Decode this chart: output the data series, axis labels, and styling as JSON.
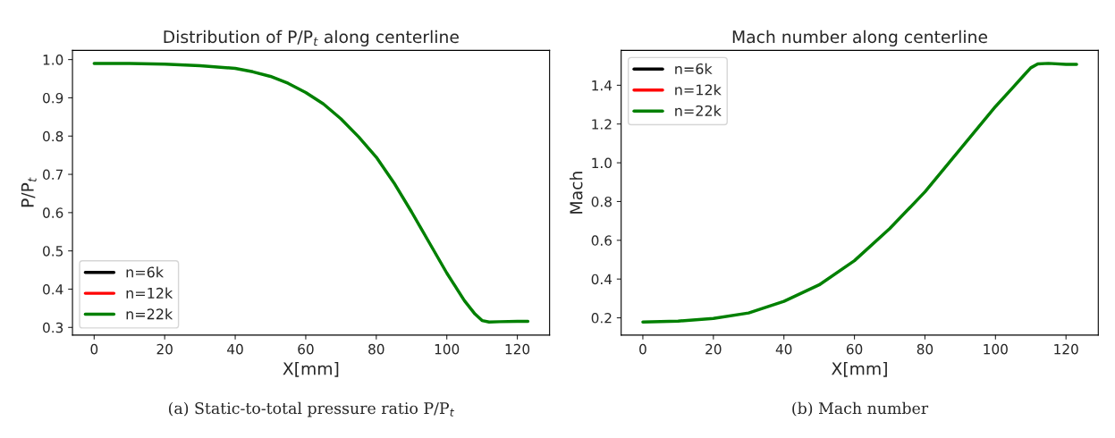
{
  "chart_data": [
    {
      "type": "line",
      "title": "Distribution of P/P$_{t}$ along centerline",
      "xlabel": "X[mm]",
      "ylabel": "P/P$_{t}$",
      "annotations": [
        "(a) Static-to-total pressure ratio P/P$_{t}$"
      ],
      "x": [
        0,
        10,
        20,
        30,
        40,
        45,
        50,
        55,
        60,
        65,
        70,
        75,
        80,
        85,
        90,
        95,
        100,
        105,
        108,
        110,
        112,
        115,
        120,
        123
      ],
      "series": [
        {
          "name": "n=6k",
          "color": "#000000",
          "values": [
            null,
            null,
            null,
            null,
            null,
            null,
            null,
            null,
            null,
            null,
            null,
            null,
            null,
            null,
            null,
            null,
            null,
            null,
            null,
            null,
            null,
            null,
            null,
            null
          ]
        },
        {
          "name": "n=12k",
          "color": "#ff0000",
          "values": [
            null,
            null,
            null,
            null,
            null,
            null,
            null,
            null,
            null,
            null,
            null,
            null,
            null,
            null,
            null,
            null,
            null,
            null,
            null,
            null,
            null,
            null,
            null,
            null
          ]
        },
        {
          "name": "n=22k",
          "color": "#008000",
          "values": [
            0.99,
            0.99,
            0.988,
            0.984,
            0.977,
            0.968,
            0.956,
            0.938,
            0.914,
            0.884,
            0.845,
            0.798,
            0.745,
            0.678,
            0.602,
            0.522,
            0.442,
            0.37,
            0.335,
            0.318,
            0.314,
            0.315,
            0.316,
            0.316
          ]
        }
      ],
      "xlim": [
        -6.15,
        129.15
      ],
      "ylim": [
        0.28,
        1.024
      ],
      "xticks": [
        0,
        20,
        40,
        60,
        80,
        100,
        120
      ],
      "yticks": [
        0.3,
        0.4,
        0.5,
        0.6,
        0.7,
        0.8,
        0.9,
        {
          "value": 1,
          "label": "1.0"
        }
      ],
      "legend": "bottom left",
      "grid": false
    },
    {
      "type": "line",
      "title": "Mach number along centerline",
      "xlabel": "X[mm]",
      "ylabel": "Mach",
      "annotations": [
        "(b) Mach number"
      ],
      "x": [
        0,
        10,
        20,
        30,
        40,
        50,
        60,
        70,
        80,
        90,
        100,
        105,
        108,
        110,
        112,
        115,
        120,
        123
      ],
      "series": [
        {
          "name": "n=6k",
          "color": "#000000",
          "values": [
            null,
            null,
            null,
            null,
            null,
            null,
            null,
            null,
            null,
            null,
            null,
            null,
            null,
            null,
            null,
            null,
            null,
            null
          ]
        },
        {
          "name": "n=12k",
          "color": "#ff0000",
          "values": [
            null,
            null,
            null,
            null,
            null,
            null,
            null,
            null,
            null,
            null,
            null,
            null,
            null,
            null,
            null,
            null,
            null,
            null
          ]
        },
        {
          "name": "n=22k",
          "color": "#008000",
          "values": [
            0.178,
            0.183,
            0.197,
            0.225,
            0.285,
            0.37,
            0.495,
            0.66,
            0.85,
            1.07,
            1.29,
            1.39,
            1.45,
            1.49,
            1.51,
            1.513,
            1.508,
            1.508
          ]
        }
      ],
      "xlim": [
        -6.15,
        129.15
      ],
      "ylim": [
        0.111,
        1.58
      ],
      "xticks": [
        0,
        20,
        40,
        60,
        80,
        100,
        120
      ],
      "yticks": [
        0.2,
        0.4,
        0.6,
        0.8,
        {
          "value": 1,
          "label": "1.0"
        },
        1.2,
        1.4
      ],
      "legend": "top left",
      "grid": false
    }
  ]
}
